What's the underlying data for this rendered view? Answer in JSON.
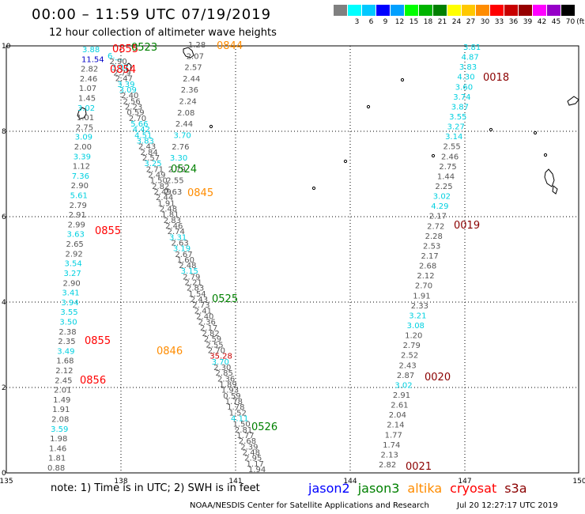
{
  "header": {
    "title": "00:00 – 11:59 UTC 07/19/2019",
    "subtitle": "12 hour collection of altimeter wave heights"
  },
  "color_scale": {
    "unit": "(ft)",
    "levels": [
      "",
      "3",
      "6",
      "9",
      "12",
      "15",
      "18",
      "21",
      "24",
      "27",
      "30",
      "33",
      "36",
      "39",
      "42",
      "45",
      "70"
    ],
    "colors": [
      "#808080",
      "#00ffff",
      "#00c8ff",
      "#0000ff",
      "#00a0ff",
      "#00ff00",
      "#00b400",
      "#008000",
      "#ffff00",
      "#ffc800",
      "#ff8c00",
      "#ff0000",
      "#c80000",
      "#960000",
      "#ff00ff",
      "#9600c8",
      "#000000"
    ]
  },
  "axes": {
    "x_ticks": [
      "135",
      "138",
      "141",
      "144",
      "147",
      "150"
    ],
    "y_ticks": [
      "10",
      "8",
      "6",
      "4",
      "2",
      "0"
    ]
  },
  "footer": {
    "note": "note: 1) Time is in UTC; 2) SWH is in feet",
    "satellites": [
      {
        "name": "jason2",
        "color": "#0000ff"
      },
      {
        "name": "jason3",
        "color": "#008000"
      },
      {
        "name": "altika",
        "color": "#ff8c00"
      },
      {
        "name": "cryosat",
        "color": "#ff0000"
      },
      {
        "name": "s3a",
        "color": "#8b0000"
      }
    ],
    "credit": "NOAA/NESDIS Center for Satellite Applications and Research",
    "timestamp": "Jul 20 12:27:17 UTC 2019"
  },
  "time_labels": [
    {
      "text": "0855",
      "sat": "cryosat"
    },
    {
      "text": "0523",
      "sat": "jason3"
    },
    {
      "text": "0844",
      "sat": "altika"
    },
    {
      "text": "0018",
      "sat": "s3a"
    },
    {
      "text": "0854",
      "sat": "cryosat"
    },
    {
      "text": "0524",
      "sat": "jason3"
    },
    {
      "text": "0845",
      "sat": "altika"
    },
    {
      "text": "0855",
      "sat": "cryosat"
    },
    {
      "text": "0019",
      "sat": "s3a"
    },
    {
      "text": "0525",
      "sat": "jason3"
    },
    {
      "text": "0855",
      "sat": "cryosat"
    },
    {
      "text": "0846",
      "sat": "altika"
    },
    {
      "text": "0856",
      "sat": "cryosat"
    },
    {
      "text": "0020",
      "sat": "s3a"
    },
    {
      "text": "0526",
      "sat": "jason3"
    },
    {
      "text": "0021",
      "sat": "s3a"
    }
  ],
  "observations": {
    "track_a": [
      "3.88",
      "11.54",
      "2.82",
      "2.46",
      "1.07",
      "1.45",
      "3.02",
      "1.01",
      "2.75",
      "3.09",
      "2.00",
      "3.39",
      "1.12",
      "7.36",
      "2.90",
      "5.61",
      "2.79",
      "2.91",
      "2.99",
      "3.63",
      "2.65",
      "2.92",
      "3.54",
      "3.27",
      "2.90",
      "3.41",
      "3.94",
      "3.55",
      "3.50",
      "2.38",
      "2.35",
      "3.49",
      "1.68",
      "2.12",
      "2.45",
      "2.01",
      "1.49",
      "1.91",
      "2.08",
      "3.59",
      "1.98",
      "1.46",
      "1.81",
      "0.88"
    ],
    "track_b": [
      "6.__",
      "2.90",
      "3.07",
      "2.79",
      "2.47",
      "3.39",
      "3.09",
      "2.40",
      "2.56",
      "2.23",
      "0.59",
      "2.70",
      "5.66",
      "4.42",
      "4.51",
      "3.83",
      "2.43",
      "2.84",
      "2.57",
      "3.25",
      "2.71",
      "2.49",
      "1.50",
      "2.82",
      "2.49",
      "2.44",
      "1.91",
      "2.48",
      "1.81",
      "2.83",
      "2.46",
      "2.74",
      "3.31",
      "2.63",
      "3.19",
      "2.67",
      "1.60",
      "2.48",
      "3.15",
      "2.79",
      "2.21",
      "2.83",
      "1.54",
      "2.43",
      "2.73",
      "2.41",
      "2.40",
      "2.36",
      "2.17",
      "2.82",
      "2.59",
      "2.55",
      "2.70",
      "35.28",
      "3.70",
      "2.30",
      "2.85",
      "2.36",
      "1.89",
      "1.93",
      "0.59",
      "1.78",
      "1.78",
      "1.52",
      "4.11",
      "1.50",
      "2.81",
      "1.77",
      "2.68",
      "2.39",
      "2.48",
      "2.95",
      "1.17",
      "1.94"
    ],
    "track_c": [
      "1.28",
      "2.07",
      "2.57",
      "2.44",
      "2.36",
      "2.24",
      "2.08",
      "2.44",
      "3.70",
      "2.76",
      "3.30",
      "2.79",
      "2.55",
      "2.63"
    ],
    "track_d": [
      "3.81",
      "4.87",
      "3.83",
      "4.30",
      "3.60",
      "3.74",
      "3.87",
      "3.55",
      "3.27",
      "3.14",
      "2.55",
      "2.46",
      "2.75",
      "1.44",
      "2.25",
      "3.02",
      "4.29",
      "2.17",
      "2.72",
      "2.28",
      "2.53",
      "2.17",
      "2.68",
      "2.12",
      "2.70",
      "1.91",
      "2.33",
      "3.21",
      "3.08",
      "1.20",
      "2.79",
      "2.52",
      "2.43",
      "2.87",
      "3.02",
      "2.91",
      "2.61",
      "2.04",
      "2.14",
      "1.77",
      "1.74",
      "2.13",
      "2.82"
    ]
  }
}
